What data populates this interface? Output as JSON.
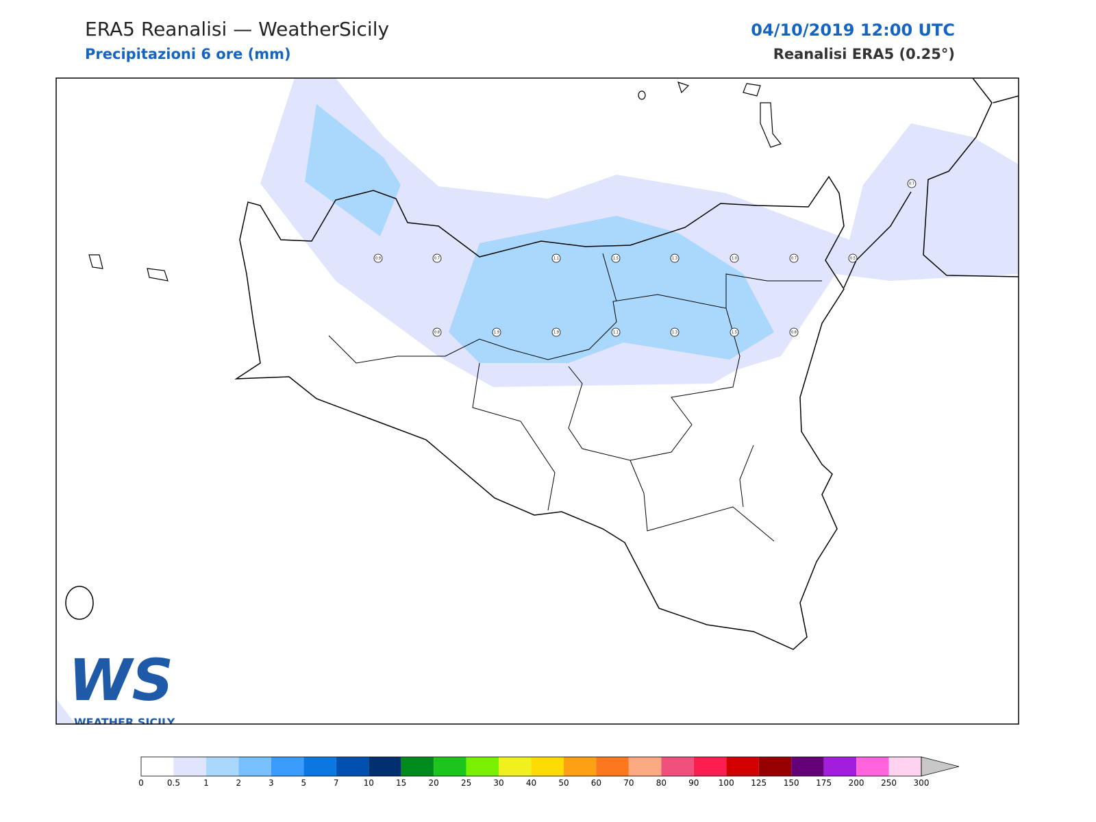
{
  "header": {
    "title": "ERA5 Reanalisi — WeatherSicily",
    "subtitle": "Precipitazioni 6 ore (mm)",
    "datetime": "04/10/2019 12:00 UTC",
    "source": "Reanalisi ERA5 (0.25°)"
  },
  "points": [
    "0.9",
    "0.7",
    "1.1",
    "1.5",
    "1.3",
    "1.0",
    "0.7",
    "0.5",
    "0.7",
    "0.8",
    "1.9",
    "1.9",
    "1.1",
    "1.3",
    "1.5",
    "0.8"
  ],
  "logo": {
    "mark": "WS",
    "text": "WEATHER SICILY"
  },
  "colorbar": {
    "levels": [
      0,
      0.5,
      1,
      2,
      3,
      5,
      7,
      10,
      15,
      20,
      25,
      30,
      40,
      50,
      60,
      70,
      80,
      90,
      100,
      125,
      150,
      175,
      200,
      250,
      300
    ],
    "colors": [
      "#ffffff",
      "#e0e4fc",
      "#aad8fc",
      "#78c0fc",
      "#3c9cfc",
      "#0a78e0",
      "#0050b0",
      "#003070",
      "#008c1c",
      "#1ec41e",
      "#78f000",
      "#f0f01e",
      "#fcdc00",
      "#fca014",
      "#fc781e",
      "#fcaa82",
      "#f0507c",
      "#fc1e50",
      "#d20000",
      "#960000",
      "#640078",
      "#a01edc",
      "#ff64dc",
      "#ffd2f0"
    ],
    "extend_color": "#c8c8c8"
  }
}
